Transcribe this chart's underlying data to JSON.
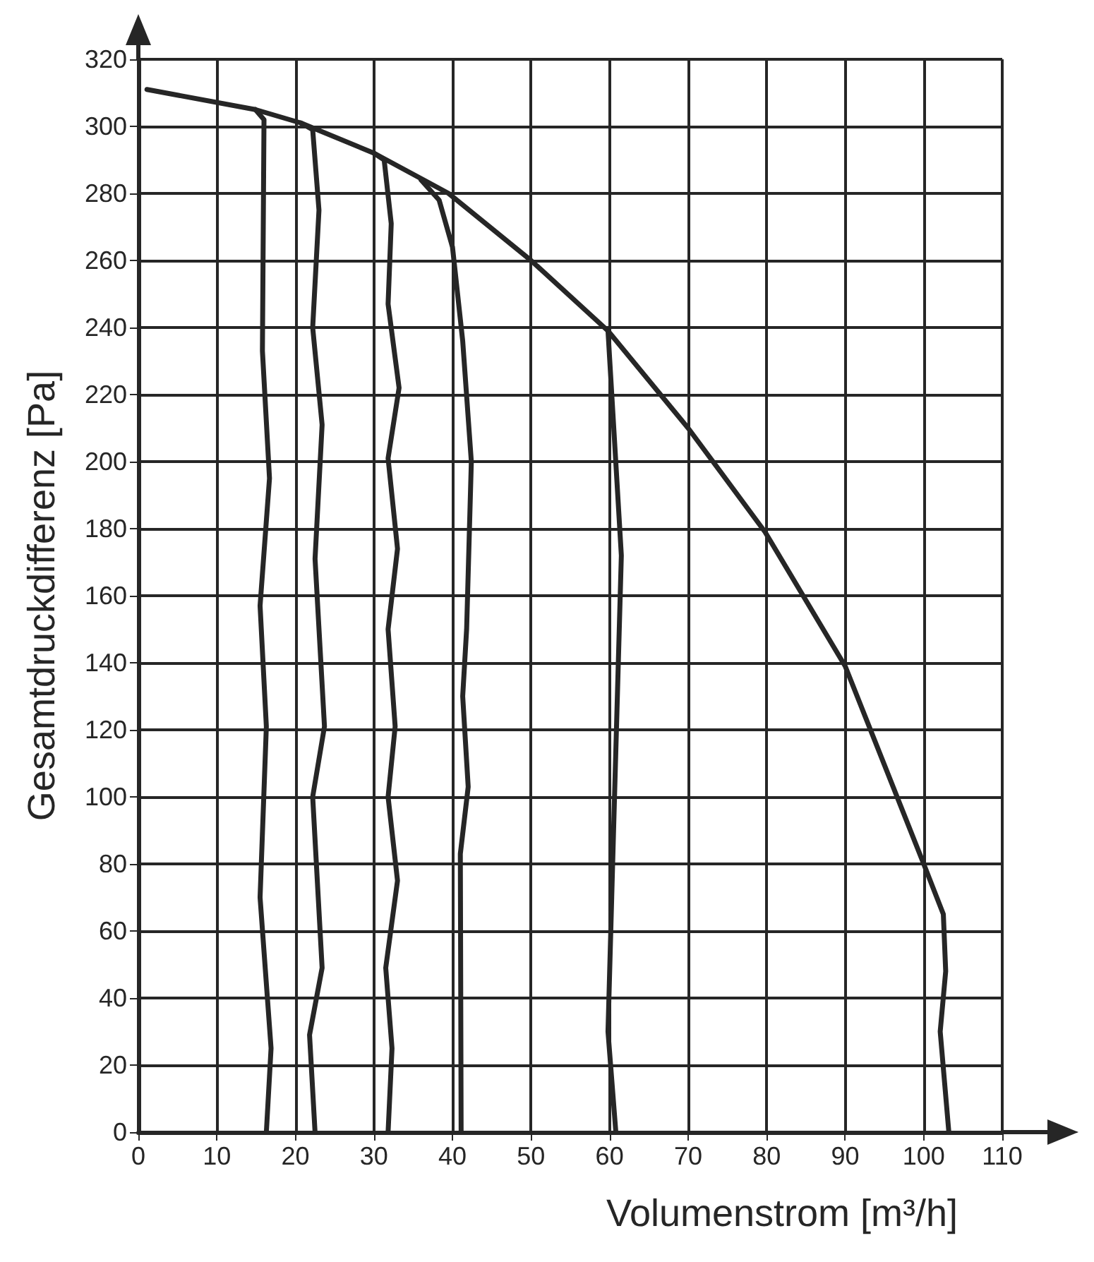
{
  "chart_data": {
    "type": "line",
    "xlabel": "Volumenstrom [m³/h]",
    "ylabel": "Gesamtdruckdifferenz [Pa]",
    "xlim": [
      0,
      110
    ],
    "xticks": [
      0,
      10,
      20,
      30,
      40,
      50,
      60,
      70,
      80,
      90,
      100,
      110
    ],
    "ylim": [
      0,
      320
    ],
    "yticks": [
      0,
      20,
      40,
      60,
      80,
      100,
      120,
      140,
      160,
      180,
      200,
      220,
      240,
      260,
      280,
      300,
      320
    ],
    "grid": true,
    "marker": "none",
    "line_style": "solid",
    "series": [
      {
        "color": "#262626",
        "x": [
          1.1,
          14.9,
          20.7,
          30,
          39.5,
          50,
          59.8,
          70,
          79.8,
          90,
          100,
          102.5,
          102.8,
          102.1,
          103.2
        ],
        "values": [
          311,
          305,
          301,
          292,
          280,
          260,
          239,
          210,
          179,
          139,
          80,
          65,
          48,
          30,
          0
        ]
      },
      {
        "color": "#262626",
        "x": [
          14.9,
          16,
          15.8,
          16.7,
          15.5,
          16.3,
          15.5,
          16.9,
          16.3
        ],
        "values": [
          305,
          302,
          233,
          195,
          157,
          121,
          70,
          25,
          0
        ]
      },
      {
        "color": "#262626",
        "x": [
          20.7,
          22.2,
          23,
          22.2,
          23.4,
          22.5,
          23.7,
          22.2,
          23.4,
          21.8,
          22.5
        ],
        "values": [
          301,
          299,
          275,
          240,
          211,
          171,
          121,
          100,
          49,
          29,
          0
        ]
      },
      {
        "color": "#262626",
        "x": [
          30,
          31.3,
          32.2,
          31.8,
          33.2,
          31.8,
          33,
          31.8,
          32.7,
          31.8,
          33,
          31.5,
          32.3,
          31.8
        ],
        "values": [
          292,
          290,
          271,
          247,
          222,
          201,
          174,
          150,
          121,
          100,
          75,
          49,
          25,
          0
        ]
      },
      {
        "color": "#262626",
        "x": [
          36,
          38.3,
          40,
          41.3,
          42.4,
          41.8,
          41.3,
          42,
          41,
          41.1
        ],
        "values": [
          284,
          278,
          264,
          236,
          200,
          150,
          130,
          103,
          83,
          0
        ]
      },
      {
        "color": "#262626",
        "x": [
          59.8,
          61.5,
          60.5,
          59.8,
          60.8
        ],
        "values": [
          239,
          172,
          89,
          30,
          0
        ]
      }
    ]
  }
}
